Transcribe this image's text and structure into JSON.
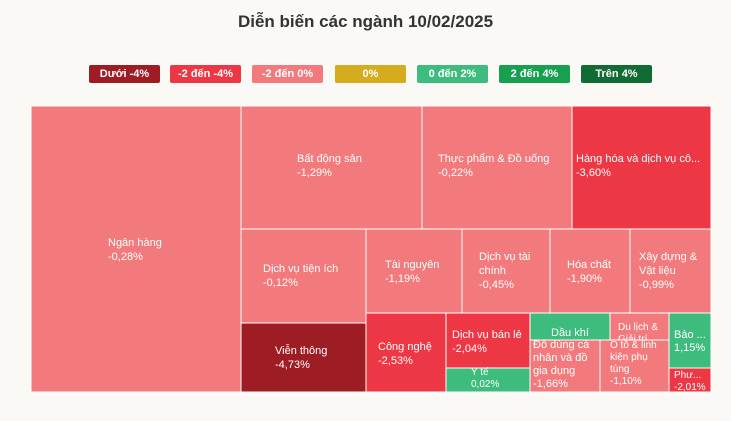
{
  "title": "Diễn biến các ngành 10/02/2025",
  "legend": [
    {
      "label": "Dưới -4%",
      "color": "#9e1c24"
    },
    {
      "label": "-2 đến -4%",
      "color": "#ee3744"
    },
    {
      "label": "-2 đến 0%",
      "color": "#f37a7c"
    },
    {
      "label": "0%",
      "color": "#d4ac1d"
    },
    {
      "label": "0 đến 2%",
      "color": "#3dbc7e"
    },
    {
      "label": "2 đến 4%",
      "color": "#17a04f"
    },
    {
      "label": "Trên 4%",
      "color": "#116b34"
    }
  ],
  "chart_data": {
    "type": "treemap",
    "title": "Diễn biến các ngành 10/02/2025",
    "sectors": [
      {
        "name": "Ngân hàng",
        "change": "-0,28%",
        "value": -0.28,
        "color": "#f37a7c"
      },
      {
        "name": "Bất động sản",
        "change": "-1,29%",
        "value": -1.29,
        "color": "#f37a7c"
      },
      {
        "name": "Thực phẩm & Đồ uống",
        "change": "-0,22%",
        "value": -0.22,
        "color": "#f37a7c"
      },
      {
        "name": "Hàng hóa và dịch vụ cô...",
        "change": "-3,60%",
        "value": -3.6,
        "color": "#ee3744"
      },
      {
        "name": "Dịch vụ tiện ích",
        "change": "-0,12%",
        "value": -0.12,
        "color": "#f37a7c"
      },
      {
        "name": "Tài nguyên",
        "change": "-1,19%",
        "value": -1.19,
        "color": "#f37a7c"
      },
      {
        "name": "Dịch vụ tài chính",
        "change": "-0,45%",
        "value": -0.45,
        "color": "#f37a7c"
      },
      {
        "name": "Hóa chất",
        "change": "-1,90%",
        "value": -1.9,
        "color": "#f37a7c"
      },
      {
        "name": "Xây dựng & Vật liệu",
        "change": "-0,99%",
        "value": -0.99,
        "color": "#f37a7c"
      },
      {
        "name": "Viễn thông",
        "change": "-4,73%",
        "value": -4.73,
        "color": "#9e1c24"
      },
      {
        "name": "Công nghệ",
        "change": "-2,53%",
        "value": -2.53,
        "color": "#ee3744"
      },
      {
        "name": "Dịch vụ bán lẻ",
        "change": "-2,04%",
        "value": -2.04,
        "color": "#ee3744"
      },
      {
        "name": "Y tế",
        "change": "0,02%",
        "value": 0.02,
        "color": "#3dbc7e"
      },
      {
        "name": "Dầu khí",
        "change": "",
        "value": null,
        "color": "#3dbc7e"
      },
      {
        "name": "Đồ dùng cá nhân và đồ gia dụng",
        "change": "-1,66%",
        "value": -1.66,
        "color": "#f37a7c"
      },
      {
        "name": "Du lịch & Giải trí",
        "change": "",
        "value": null,
        "color": "#f37a7c"
      },
      {
        "name": "Ô tô & linh kiện phụ tùng",
        "change": "-1,10%",
        "value": -1.1,
        "color": "#f37a7c"
      },
      {
        "name": "Bảo ...",
        "change": "1,15%",
        "value": 1.15,
        "color": "#3dbc7e"
      },
      {
        "name": "Phư...",
        "change": "-2,01%",
        "value": -2.01,
        "color": "#ee3744"
      }
    ]
  }
}
